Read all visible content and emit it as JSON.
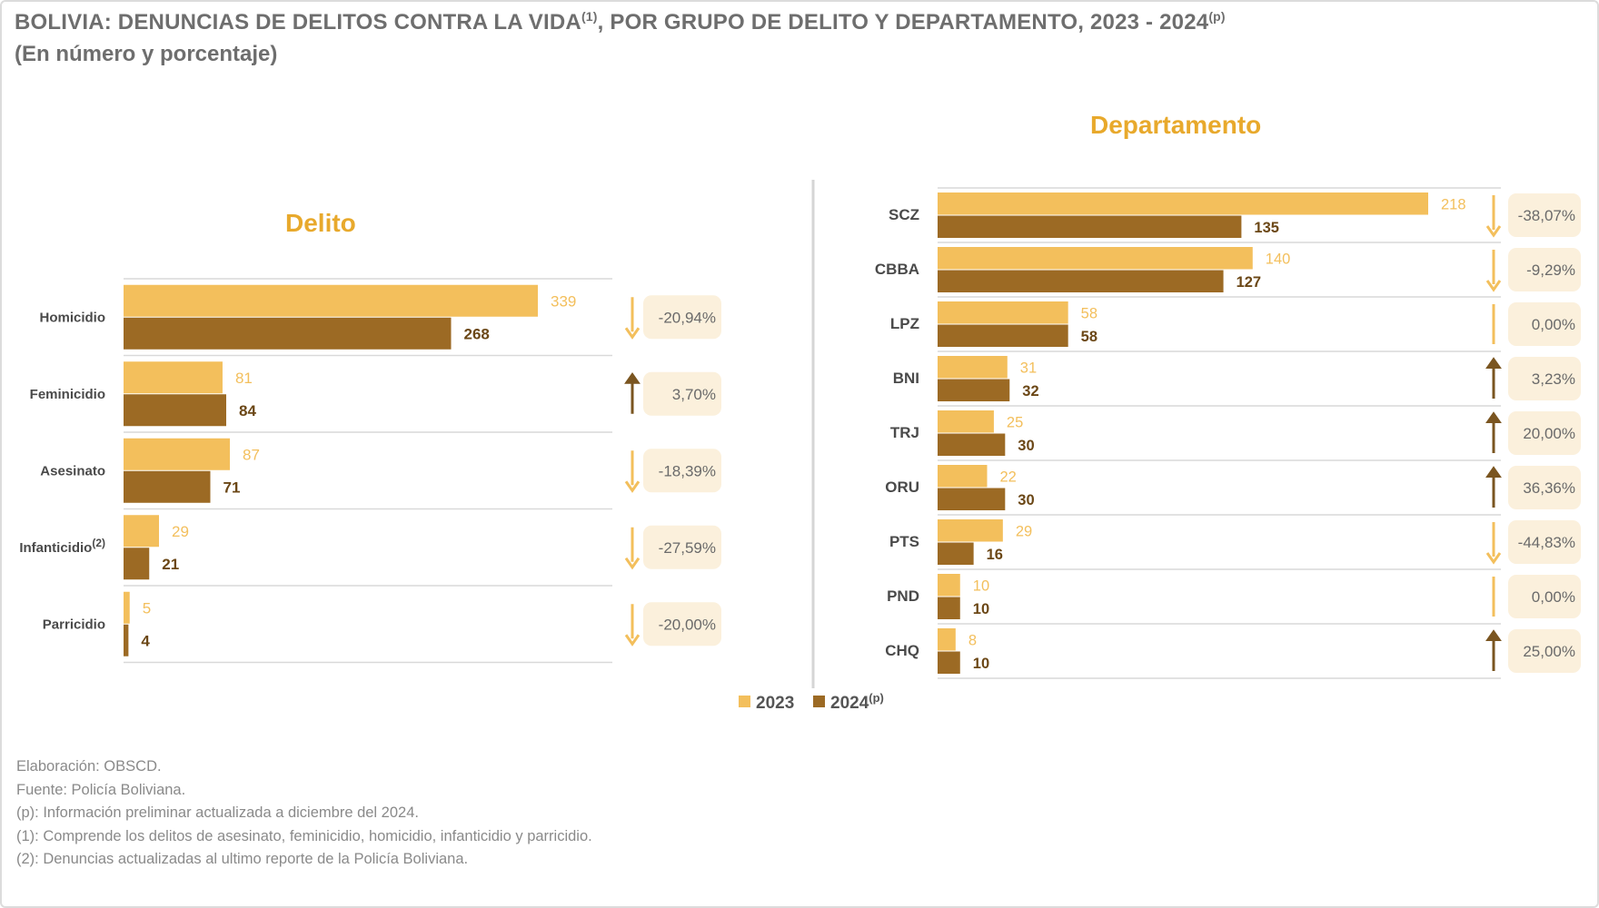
{
  "header": {
    "title_main": "BOLIVIA: DENUNCIAS DE DELITOS CONTRA LA VIDA",
    "title_sup1": "(1)",
    "title_rest": ", POR GRUPO DE DELITO Y DEPARTAMENTO, 2023 - 2024",
    "title_sup2": "(p)",
    "subtitle": "(En número y porcentaje)"
  },
  "colors": {
    "y2023": "#f3bf5c",
    "y2024": "#9c6a24",
    "title_accent": "#e8a92c",
    "badge": "#fbf0dc",
    "gridline": "#d9d9d9"
  },
  "chart_data": [
    {
      "type": "bar",
      "orientation": "horizontal",
      "title": "Delito",
      "categories": [
        "Homicidio",
        "Feminicidio",
        "Asesinato",
        "Infanticidio",
        "Parricidio"
      ],
      "category_sups": [
        "",
        "",
        "",
        "(2)",
        ""
      ],
      "series": [
        {
          "name": "2023",
          "values": [
            339,
            81,
            87,
            29,
            5
          ]
        },
        {
          "name": "2024",
          "values": [
            268,
            84,
            71,
            21,
            4
          ]
        }
      ],
      "change_labels": [
        "-20,94%",
        "3,70%",
        "-18,39%",
        "-27,59%",
        "-20,00%"
      ],
      "change_direction": [
        "down",
        "up",
        "down",
        "down",
        "down"
      ],
      "xlim": [
        0,
        339
      ]
    },
    {
      "type": "bar",
      "orientation": "horizontal",
      "title": "Departamento",
      "categories": [
        "SCZ",
        "CBBA",
        "LPZ",
        "BNI",
        "TRJ",
        "ORU",
        "PTS",
        "PND",
        "CHQ"
      ],
      "category_sups": [
        "",
        "",
        "",
        "",
        "",
        "",
        "",
        "",
        ""
      ],
      "series": [
        {
          "name": "2023",
          "values": [
            218,
            140,
            58,
            31,
            25,
            22,
            29,
            10,
            8
          ]
        },
        {
          "name": "2024",
          "values": [
            135,
            127,
            58,
            32,
            30,
            30,
            16,
            10,
            10
          ]
        }
      ],
      "change_labels": [
        "-38,07%",
        "-9,29%",
        "0,00%",
        "3,23%",
        "20,00%",
        "36,36%",
        "-44,83%",
        "0,00%",
        "25,00%"
      ],
      "change_direction": [
        "down",
        "down",
        "flat",
        "up",
        "up",
        "up",
        "down",
        "flat",
        "up"
      ],
      "xlim": [
        0,
        218
      ]
    }
  ],
  "legend": {
    "item_2023": "2023",
    "item_2024": "2024",
    "item_2024_sup": "(p)"
  },
  "footnotes": [
    "Elaboración: OBSCD.",
    "Fuente: Policía Boliviana.",
    "(p): Información preliminar actualizada a diciembre del 2024.",
    "(1): Comprende los delitos de asesinato, feminicidio, homicidio, infanticidio y parricidio.",
    "(2): Denuncias actualizadas al ultimo reporte de la Policía Boliviana."
  ]
}
